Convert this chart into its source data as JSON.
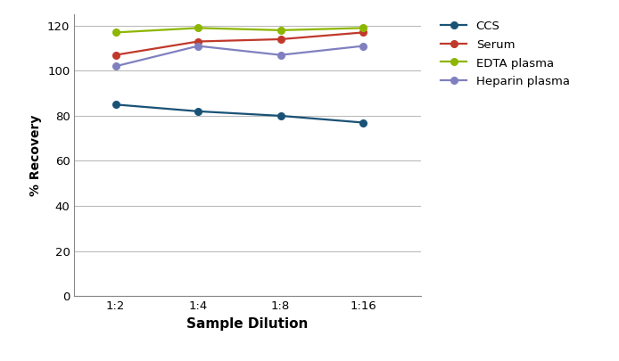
{
  "x_labels": [
    "1:2",
    "1:4",
    "1:8",
    "1:16"
  ],
  "x_positions": [
    0,
    1,
    2,
    3
  ],
  "series": [
    {
      "label": "CCS",
      "color": "#1a5276",
      "values": [
        85,
        82,
        80,
        77
      ],
      "marker": "o"
    },
    {
      "label": "Serum",
      "color": "#c0392b",
      "values": [
        107,
        113,
        114,
        117
      ],
      "marker": "o"
    },
    {
      "label": "EDTA plasma",
      "color": "#8db600",
      "values": [
        117,
        119,
        118,
        119
      ],
      "marker": "o"
    },
    {
      "label": "Heparin plasma",
      "color": "#8080c0",
      "values": [
        102,
        111,
        107,
        111
      ],
      "marker": "o"
    }
  ],
  "xlabel": "Sample Dilution",
  "ylabel": "% Recovery",
  "ylim": [
    0,
    125
  ],
  "yticks": [
    0,
    20,
    40,
    60,
    80,
    100,
    120
  ],
  "grid_color": "#bbbbbb",
  "background_color": "#ffffff"
}
